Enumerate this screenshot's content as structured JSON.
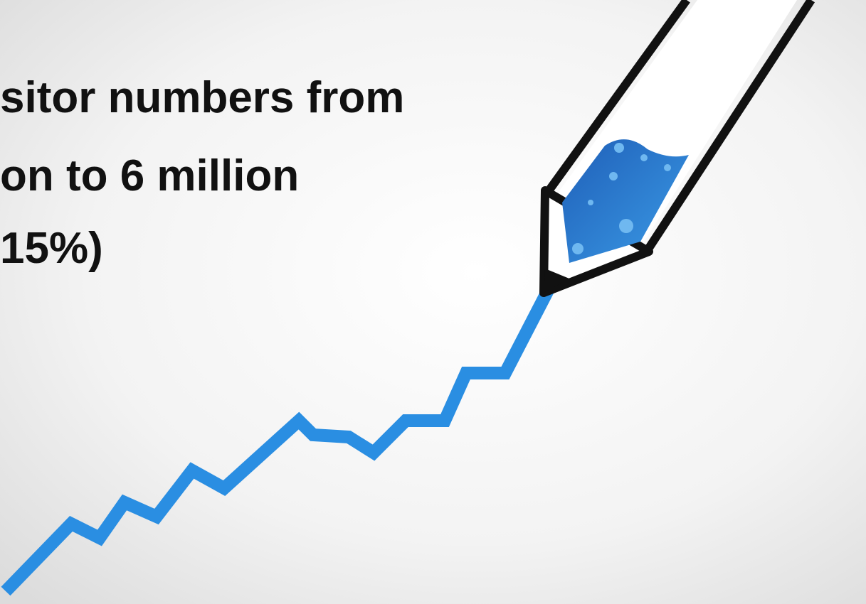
{
  "lines": [
    "sitor numbers from",
    "on to 6 million",
    "15%)"
  ]
}
